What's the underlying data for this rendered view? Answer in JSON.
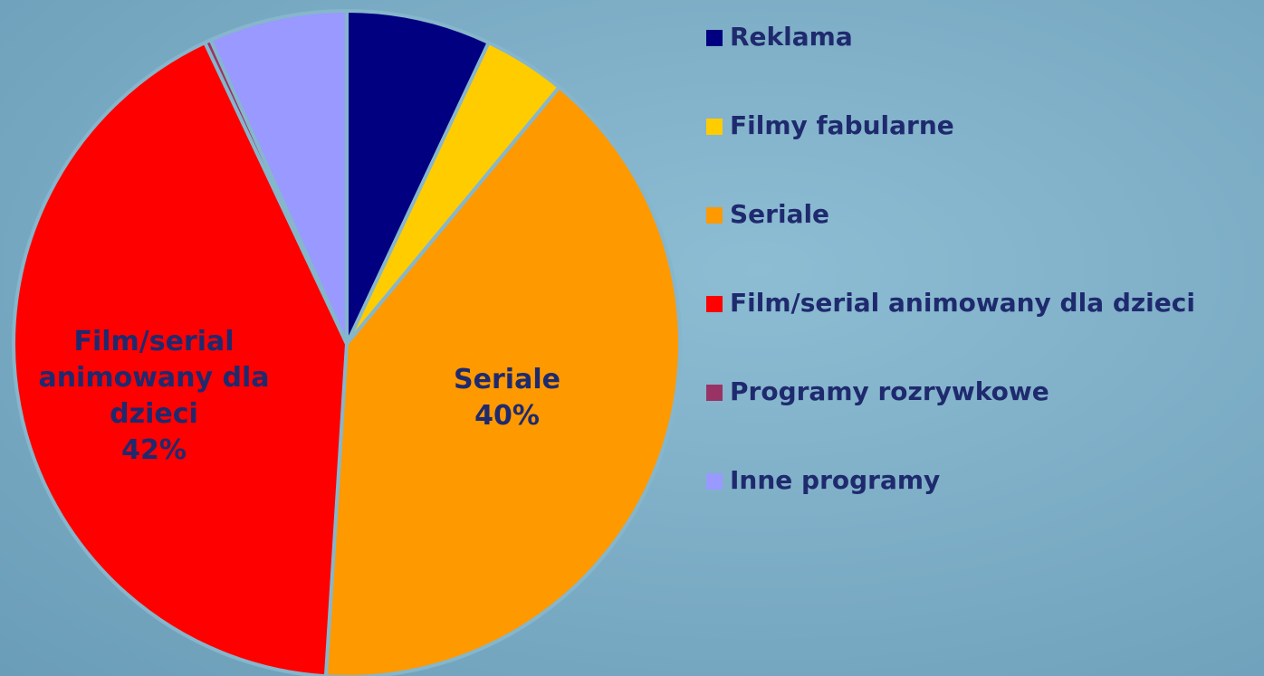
{
  "chart_data": {
    "type": "pie",
    "categories": [
      "Reklama",
      "Filmy fabularne",
      "Seriale",
      "Film/serial animowany dla dzieci",
      "Programy rozrywkowe",
      "Inne programy"
    ],
    "values": [
      7,
      4,
      40,
      42,
      0.3,
      6.7
    ],
    "value_labels": [
      null,
      null,
      "40%",
      "42%",
      null,
      null
    ],
    "colors": [
      "#000080",
      "#ffcc00",
      "#ff9900",
      "#ff0000",
      "#993366",
      "#9999ff"
    ],
    "legend": "right"
  }
}
